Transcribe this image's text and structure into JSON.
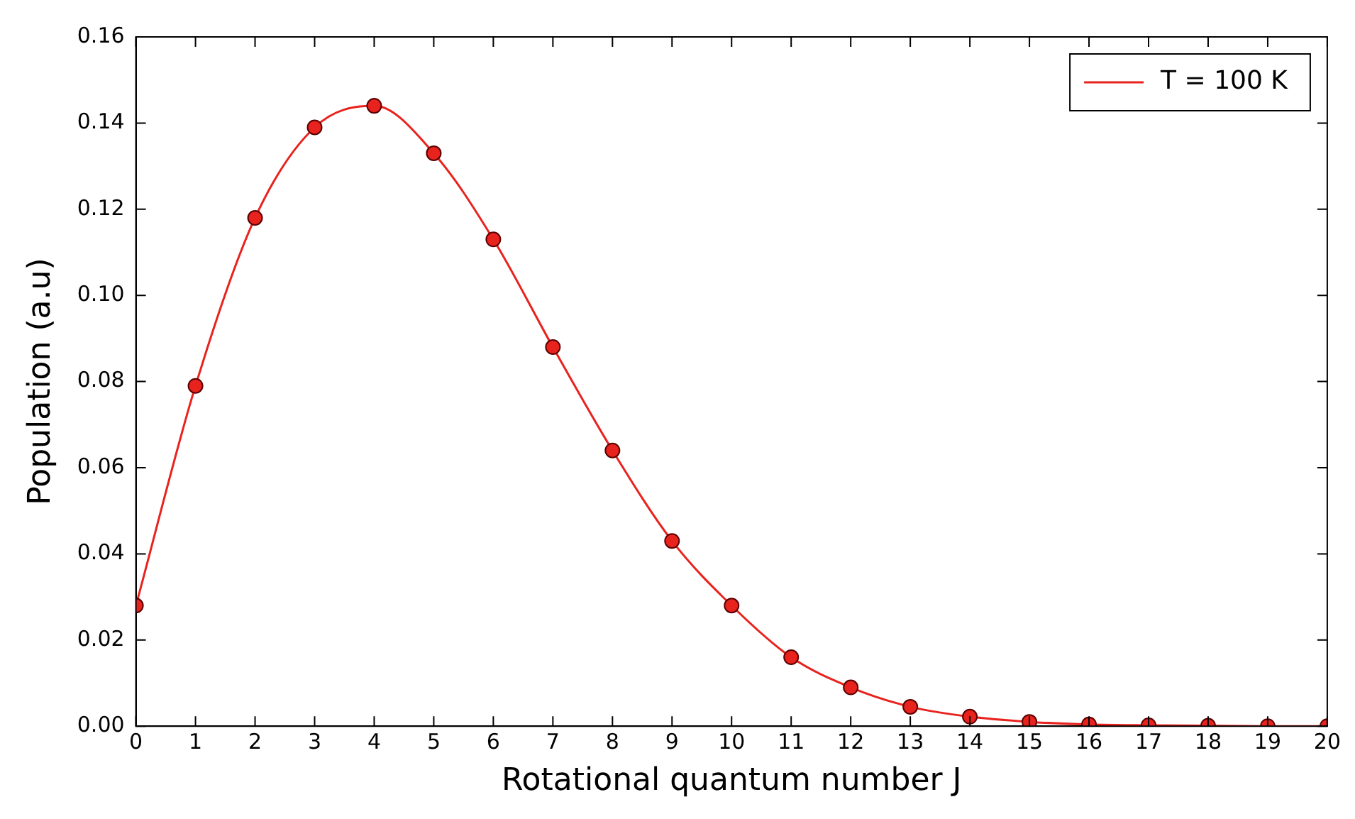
{
  "chart_data": {
    "type": "line",
    "xlabel": "Rotational quantum number J",
    "ylabel": "Population (a.u)",
    "x": [
      0,
      1,
      2,
      3,
      4,
      5,
      6,
      7,
      8,
      9,
      10,
      11,
      12,
      13,
      14,
      15,
      16,
      17,
      18,
      19,
      20
    ],
    "series": [
      {
        "name": "T = 100 K",
        "color": "#e8231e",
        "values": [
          0.028,
          0.079,
          0.118,
          0.139,
          0.144,
          0.133,
          0.113,
          0.088,
          0.064,
          0.043,
          0.028,
          0.016,
          0.009,
          0.0045,
          0.0022,
          0.001,
          0.0004,
          0.0002,
          0.0001,
          0,
          0
        ]
      }
    ],
    "xlim": [
      0,
      20
    ],
    "xticks": [
      0,
      1,
      2,
      3,
      4,
      5,
      6,
      7,
      8,
      9,
      10,
      11,
      12,
      13,
      14,
      15,
      16,
      17,
      18,
      19,
      20
    ],
    "ylim": [
      0,
      0.16
    ],
    "yticks": [
      {
        "value": 0,
        "label": "0.00"
      },
      {
        "value": 0.02,
        "label": "0.02"
      },
      {
        "value": 0.04,
        "label": "0.04"
      },
      {
        "value": 0.06,
        "label": "0.06"
      },
      {
        "value": 0.08,
        "label": "0.08"
      },
      {
        "value": 0.1,
        "label": "0.10"
      },
      {
        "value": 0.12,
        "label": "0.12"
      },
      {
        "value": 0.14,
        "label": "0.14"
      },
      {
        "value": 0.16,
        "label": "0.16"
      }
    ],
    "grid": false,
    "legend": "top right",
    "marker": "circle",
    "line_style": "solid"
  }
}
